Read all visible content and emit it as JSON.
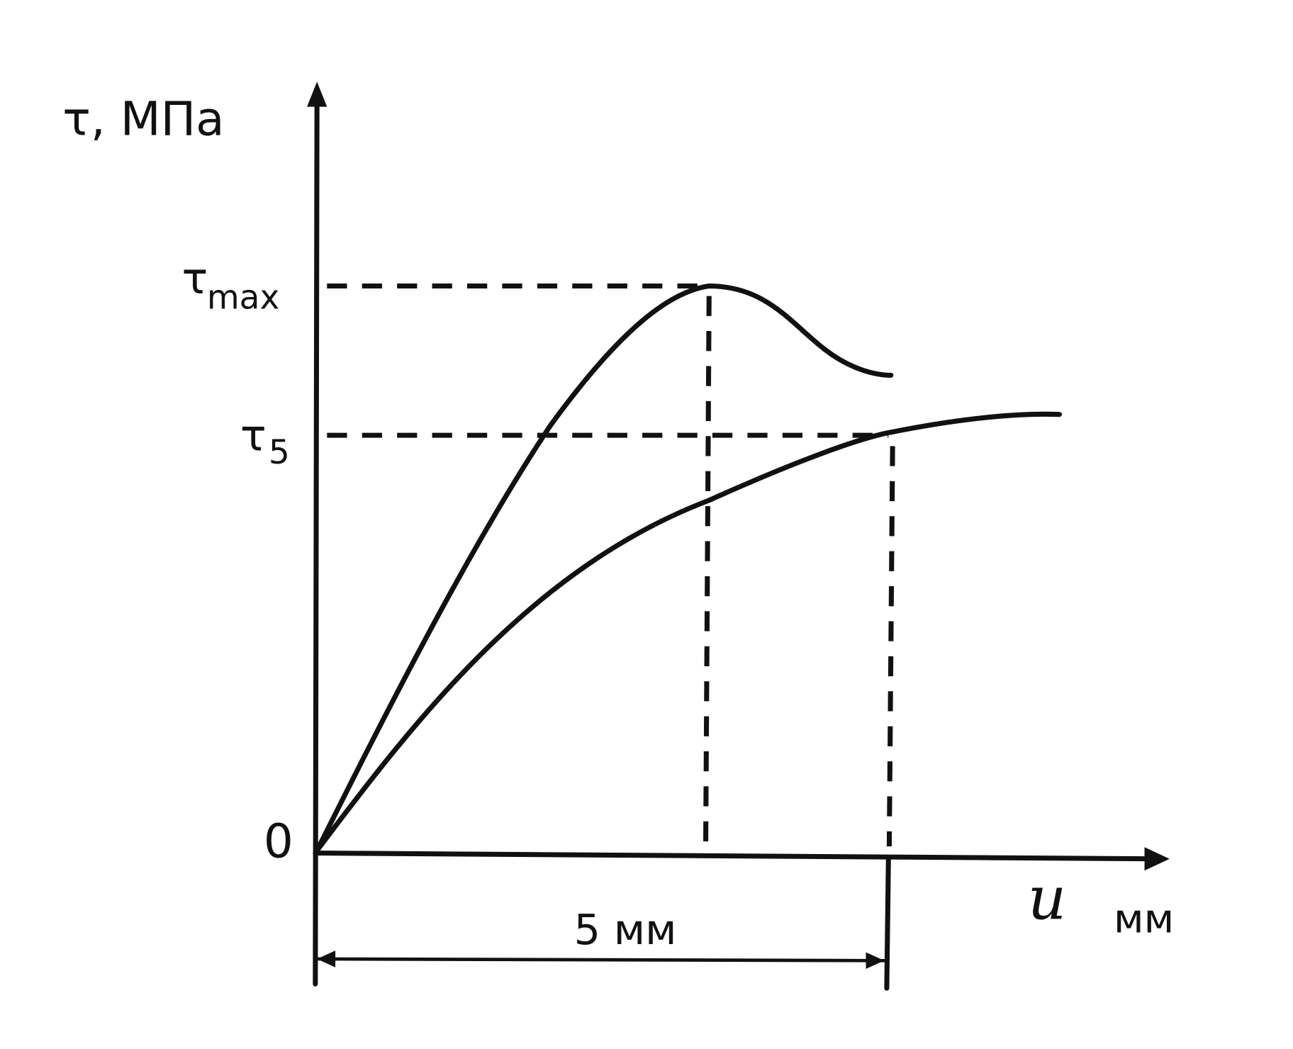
{
  "y_axis": {
    "label": "τ, МПа",
    "origin": 0,
    "levels": [
      {
        "symbol": "τ",
        "subscript": "max"
      },
      {
        "symbol": "τ",
        "subscript": "5"
      }
    ]
  },
  "x_axis": {
    "symbol": "u",
    "unit": "мм"
  },
  "dimension": {
    "label": "5 мм"
  }
}
